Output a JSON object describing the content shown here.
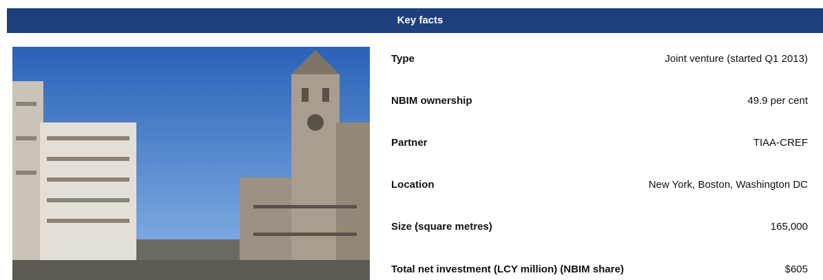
{
  "header": {
    "title": "Key facts"
  },
  "table": {
    "rows": [
      [
        "Type",
        "Joint venture (started Q1 2013)"
      ],
      [
        "NBIM ownership",
        "49.9 per cent"
      ],
      [
        "Partner",
        "TIAA-CREF"
      ],
      [
        "Location",
        "New York, Boston, Washington DC"
      ],
      [
        "Size (square metres)",
        "165,000"
      ],
      [
        "Total net investment (LCY million) (NBIM share)",
        "$605"
      ]
    ]
  }
}
